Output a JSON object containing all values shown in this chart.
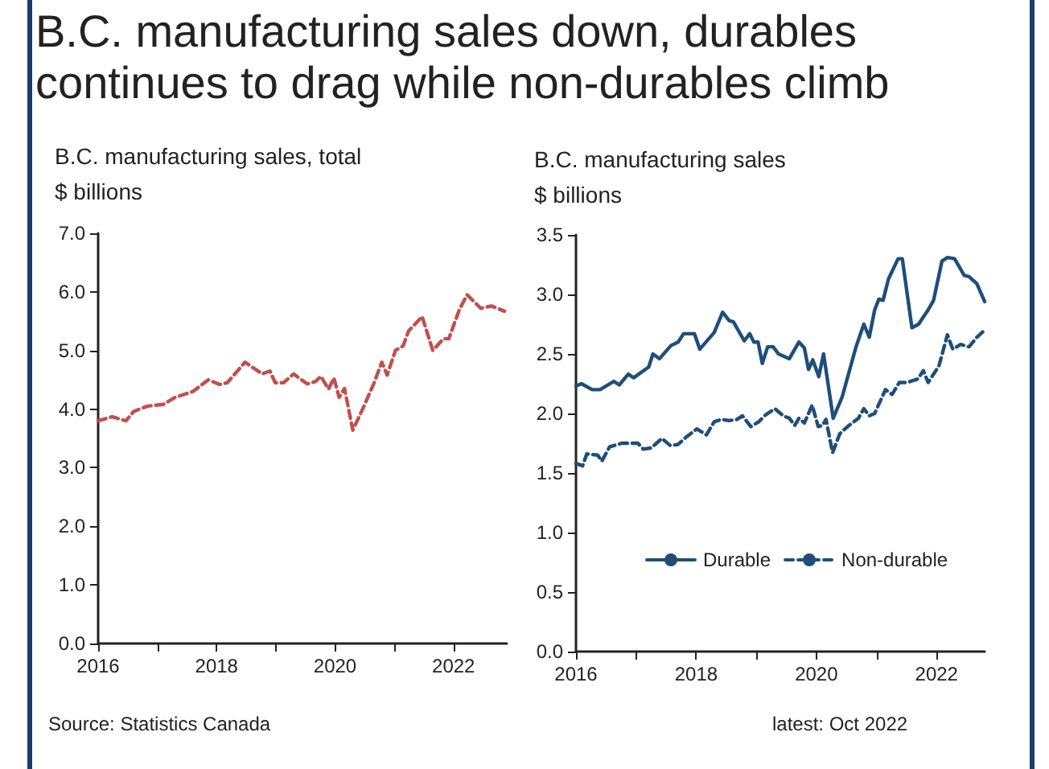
{
  "chart_data": [
    {
      "type": "line",
      "title": "B.C. manufacturing sales down, durables continues to drag while non-durables climb",
      "subtitle": "B.C. manufacturing sales, total",
      "ylabel": "$ billions",
      "annotations": [
        "Source: Statistics Canada"
      ],
      "marker": "none",
      "grid": false,
      "legend": false,
      "xlim": [
        2016,
        2022.9
      ],
      "xticks": [
        2016,
        {
          "value": 2017,
          "label": null
        },
        2018,
        {
          "value": 2019,
          "label": null
        },
        2020,
        {
          "value": 2021,
          "label": null
        },
        2022
      ],
      "ylim": [
        0,
        7
      ],
      "yticks": [
        {
          "value": 0,
          "label": "0.0"
        },
        {
          "value": 1,
          "label": "1.0"
        },
        {
          "value": 2,
          "label": "2.0"
        },
        {
          "value": 3,
          "label": "3.0"
        },
        {
          "value": 4,
          "label": "4.0"
        },
        {
          "value": 5,
          "label": "5.0"
        },
        {
          "value": 6,
          "label": "6.0"
        },
        {
          "value": 7,
          "label": "7.0"
        }
      ],
      "series": [
        {
          "color": "#c0504d",
          "line_style": "dashed",
          "x": [
            2016.0,
            2016.24,
            2016.47,
            2016.6,
            2016.83,
            2017.1,
            2017.3,
            2017.6,
            2017.86,
            2018.05,
            2018.18,
            2018.48,
            2018.77,
            2018.9,
            2018.99,
            2019.13,
            2019.3,
            2019.53,
            2019.67,
            2019.76,
            2019.89,
            2019.98,
            2020.07,
            2020.16,
            2020.3,
            2020.48,
            2020.66,
            2020.79,
            2020.88,
            2021.02,
            2021.15,
            2021.24,
            2021.47,
            2021.65,
            2021.83,
            2021.92,
            2022.1,
            2022.23,
            2022.46,
            2022.64,
            2022.86
          ],
          "values": [
            3.8,
            3.87,
            3.8,
            3.96,
            4.05,
            4.08,
            4.2,
            4.3,
            4.5,
            4.42,
            4.45,
            4.8,
            4.6,
            4.65,
            4.45,
            4.45,
            4.6,
            4.43,
            4.47,
            4.56,
            4.34,
            4.53,
            4.2,
            4.35,
            3.64,
            4.03,
            4.45,
            4.8,
            4.58,
            5.0,
            5.08,
            5.33,
            5.58,
            5.0,
            5.2,
            5.2,
            5.7,
            5.95,
            5.72,
            5.76,
            5.67
          ]
        }
      ]
    },
    {
      "type": "line",
      "subtitle": "B.C. manufacturing sales",
      "ylabel": "$ billions",
      "annotations": [
        "latest: Oct 2022"
      ],
      "marker": "none",
      "grid": false,
      "legend": "bottom",
      "xlim": [
        2016,
        2022.8
      ],
      "xticks": [
        2016,
        {
          "value": 2017,
          "label": null
        },
        2018,
        {
          "value": 2019,
          "label": null
        },
        2020,
        {
          "value": 2021,
          "label": null
        },
        2022
      ],
      "ylim": [
        0,
        3.5
      ],
      "yticks": [
        {
          "value": 0,
          "label": "0.0"
        },
        {
          "value": 0.5,
          "label": "0.5"
        },
        {
          "value": 1,
          "label": "1.0"
        },
        {
          "value": 1.5,
          "label": "1.5"
        },
        {
          "value": 2,
          "label": "2.0"
        },
        {
          "value": 2.5,
          "label": "2.5"
        },
        {
          "value": 3,
          "label": "3.0"
        },
        {
          "value": 3.5,
          "label": "3.5"
        }
      ],
      "series": [
        {
          "name": "Durable",
          "color": "#1f4e79",
          "line_style": "solid",
          "x": [
            2016.0,
            2016.09,
            2016.27,
            2016.4,
            2016.63,
            2016.72,
            2016.87,
            2016.96,
            2017.21,
            2017.28,
            2017.39,
            2017.58,
            2017.7,
            2017.79,
            2017.97,
            2018.06,
            2018.3,
            2018.44,
            2018.55,
            2018.62,
            2018.8,
            2018.89,
            2018.96,
            2019.03,
            2019.1,
            2019.19,
            2019.28,
            2019.37,
            2019.55,
            2019.71,
            2019.8,
            2019.87,
            2019.94,
            2020.04,
            2020.12,
            2020.28,
            2020.43,
            2020.66,
            2020.79,
            2020.88,
            2020.97,
            2021.04,
            2021.11,
            2021.2,
            2021.36,
            2021.43,
            2021.59,
            2021.7,
            2021.86,
            2021.95,
            2022.09,
            2022.18,
            2022.3,
            2022.46,
            2022.54,
            2022.67,
            2022.8
          ],
          "values": [
            2.23,
            2.25,
            2.2,
            2.2,
            2.27,
            2.24,
            2.33,
            2.3,
            2.39,
            2.5,
            2.46,
            2.57,
            2.6,
            2.67,
            2.67,
            2.54,
            2.68,
            2.85,
            2.78,
            2.77,
            2.61,
            2.67,
            2.6,
            2.6,
            2.42,
            2.56,
            2.56,
            2.5,
            2.46,
            2.6,
            2.55,
            2.37,
            2.45,
            2.31,
            2.5,
            1.96,
            2.14,
            2.56,
            2.75,
            2.64,
            2.87,
            2.96,
            2.95,
            3.13,
            3.3,
            3.3,
            2.72,
            2.75,
            2.87,
            2.95,
            3.28,
            3.31,
            3.3,
            3.16,
            3.15,
            3.09,
            2.94
          ]
        },
        {
          "name": "Non-durable",
          "color": "#1f4e79",
          "line_style": "dashed",
          "x": [
            2016.0,
            2016.11,
            2016.18,
            2016.36,
            2016.43,
            2016.56,
            2016.76,
            2017.03,
            2017.12,
            2017.25,
            2017.43,
            2017.57,
            2017.7,
            2017.83,
            2018.01,
            2018.17,
            2018.3,
            2018.42,
            2018.55,
            2018.68,
            2018.77,
            2018.91,
            2019.04,
            2019.16,
            2019.31,
            2019.45,
            2019.55,
            2019.64,
            2019.71,
            2019.8,
            2019.93,
            2020.03,
            2020.1,
            2020.16,
            2020.27,
            2020.39,
            2020.52,
            2020.7,
            2020.79,
            2020.88,
            2020.97,
            2021.15,
            2021.26,
            2021.38,
            2021.51,
            2021.69,
            2021.78,
            2021.86,
            2022.04,
            2022.18,
            2022.27,
            2022.4,
            2022.54,
            2022.67,
            2022.8
          ],
          "values": [
            1.58,
            1.56,
            1.66,
            1.65,
            1.6,
            1.72,
            1.75,
            1.75,
            1.7,
            1.71,
            1.79,
            1.73,
            1.74,
            1.8,
            1.87,
            1.82,
            1.93,
            1.95,
            1.94,
            1.95,
            1.98,
            1.89,
            1.93,
            1.99,
            2.04,
            1.98,
            1.96,
            1.9,
            1.96,
            1.92,
            2.07,
            1.89,
            1.9,
            1.95,
            1.67,
            1.83,
            1.89,
            1.96,
            2.04,
            1.98,
            2.0,
            2.2,
            2.16,
            2.26,
            2.26,
            2.29,
            2.36,
            2.26,
            2.4,
            2.66,
            2.54,
            2.58,
            2.56,
            2.64,
            2.7
          ]
        }
      ]
    }
  ]
}
